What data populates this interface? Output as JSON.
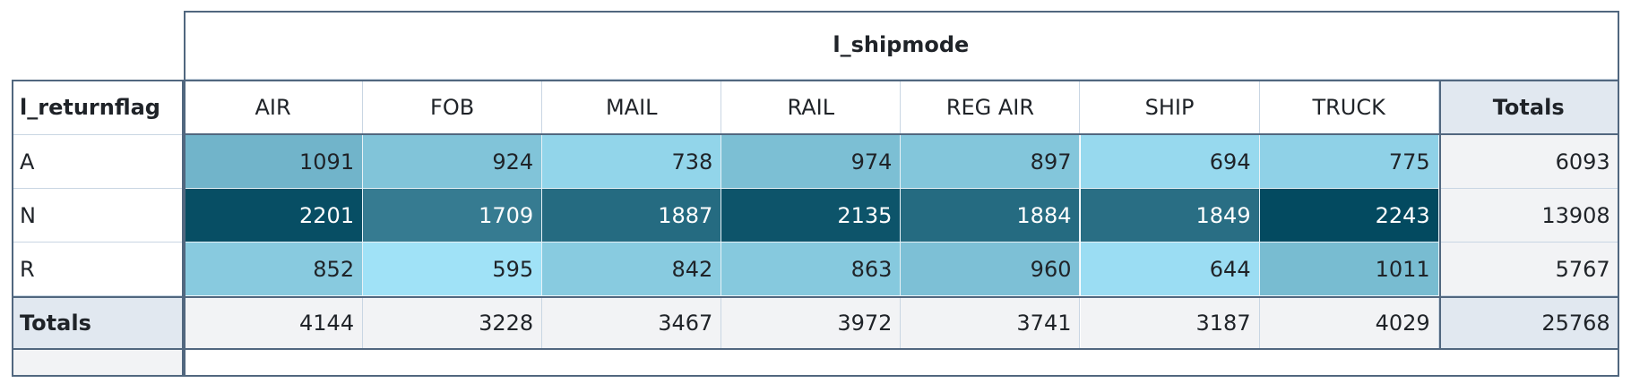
{
  "header": {
    "title": "l_shipmode",
    "row_header": "l_returnflag",
    "totals_label": "Totals"
  },
  "columns": [
    "AIR",
    "FOB",
    "MAIL",
    "RAIL",
    "REG AIR",
    "SHIP",
    "TRUCK"
  ],
  "rows": [
    {
      "label": "A",
      "values": [
        1091,
        924,
        738,
        974,
        897,
        694,
        775
      ],
      "total": 6093
    },
    {
      "label": "N",
      "values": [
        2201,
        1709,
        1887,
        2135,
        1884,
        1849,
        2243
      ],
      "total": 13908
    },
    {
      "label": "R",
      "values": [
        852,
        595,
        842,
        863,
        960,
        644,
        1011
      ],
      "total": 5767
    }
  ],
  "column_totals": [
    4144,
    3228,
    3467,
    3972,
    3741,
    3187,
    4029
  ],
  "grand_total": 25768,
  "heat_colors": {
    "low": "#a0e2f7",
    "high": "#034a60"
  }
}
